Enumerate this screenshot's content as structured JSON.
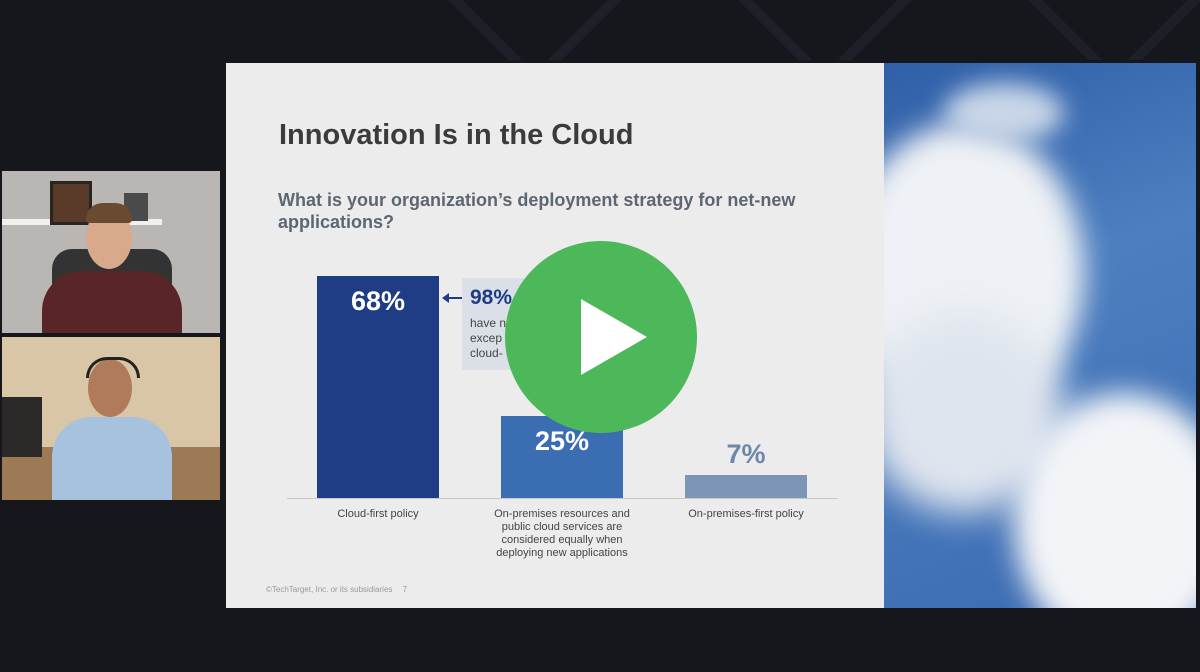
{
  "slide": {
    "title": "Innovation Is in the Cloud",
    "callout": {
      "headline": "98%",
      "lines": [
        "have n",
        "excep",
        "cloud-"
      ]
    },
    "footer": {
      "copyright": "©TechTarget, Inc. or its subsidiaries",
      "page": "7"
    }
  },
  "chart_data": {
    "type": "bar",
    "title": "What is your organization’s deployment strategy for net-new applications?",
    "categories": [
      "Cloud-first policy",
      "On-premises resources and public cloud services are considered equally when deploying new applications",
      "On-premises-first policy"
    ],
    "values": [
      68,
      25,
      7
    ],
    "value_labels": [
      "68%",
      "25%",
      "7%"
    ],
    "colors": [
      "#1e3d85",
      "#3b6db3",
      "#7d96b7"
    ],
    "label_colors": [
      "#ffffff",
      "#ffffff",
      "#6d87aa"
    ]
  }
}
